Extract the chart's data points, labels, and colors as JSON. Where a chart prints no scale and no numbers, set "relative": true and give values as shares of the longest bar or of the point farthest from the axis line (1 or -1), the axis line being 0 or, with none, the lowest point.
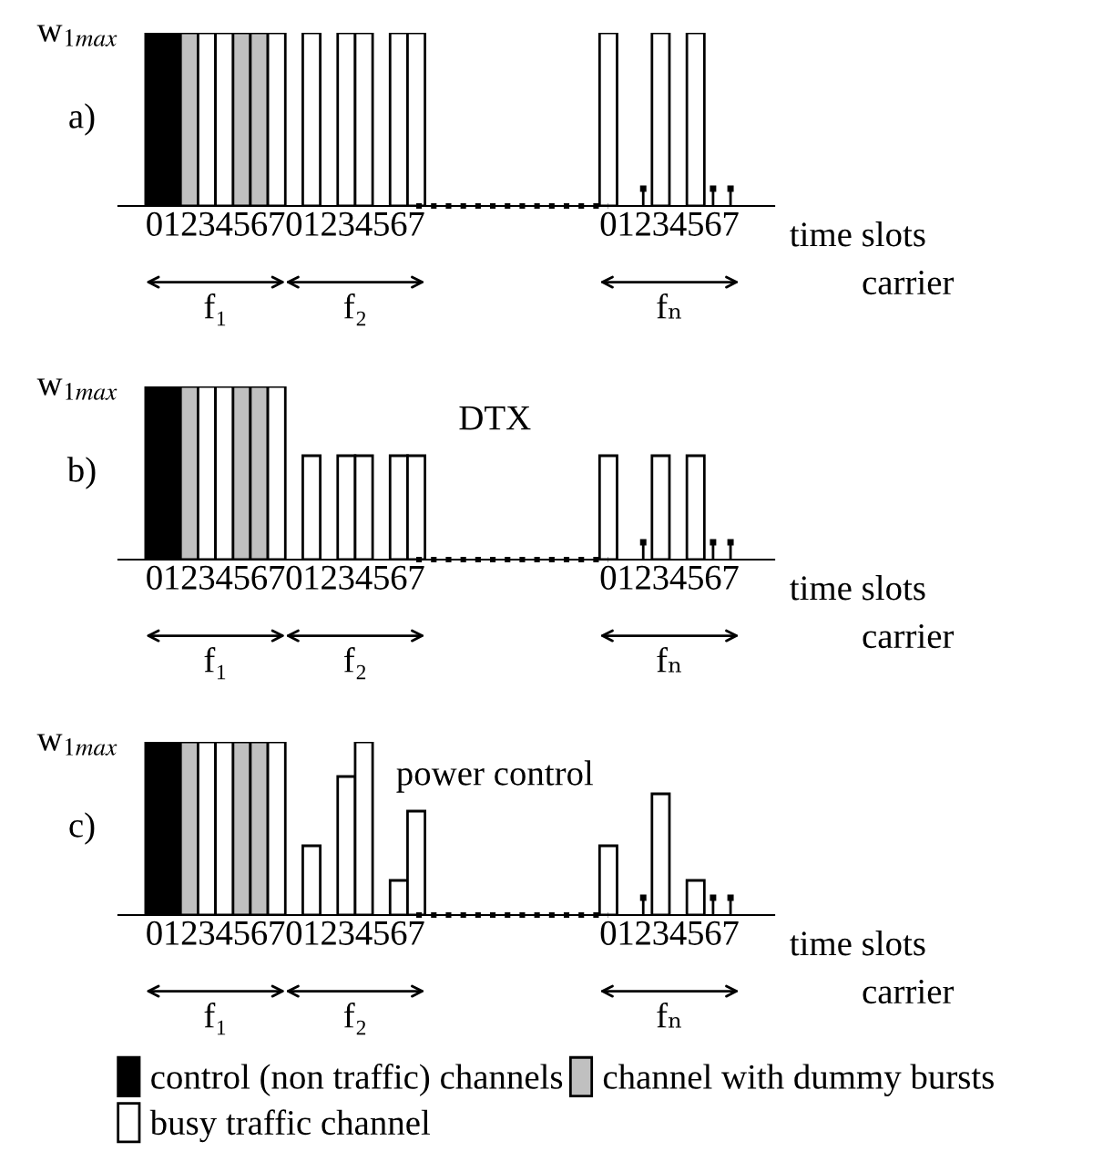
{
  "chart_data": [
    {
      "type": "bar",
      "relative": true,
      "title": "a)",
      "ylabel": "w$_{1max}$",
      "xlabel": "time slots",
      "tick_labels": "x",
      "legend": false,
      "annotations": [
        "f₁",
        "f₂",
        "fₙ",
        "carrier"
      ],
      "categories": [
        "0",
        "1",
        "2",
        "3",
        "4",
        "5",
        "6",
        "7",
        "0",
        "1",
        "2",
        "3",
        "4",
        "5",
        "6",
        "7",
        null,
        null,
        null,
        null,
        null,
        null,
        null,
        null,
        null,
        null,
        "0",
        "1",
        "2",
        "3",
        "4",
        "5",
        "6",
        "7"
      ],
      "series": [
        {
          "color": "#000000",
          "values": [
            1,
            1,
            null,
            null,
            null,
            null,
            null,
            null,
            null,
            null,
            null,
            null,
            null,
            null,
            null,
            null,
            null,
            null,
            null,
            null,
            null,
            null,
            null,
            null,
            null,
            null,
            null,
            null,
            null,
            null,
            null,
            null,
            null,
            null
          ]
        },
        {
          "color": "#c0c0c0",
          "values": [
            null,
            null,
            1,
            null,
            null,
            1,
            1,
            null,
            null,
            null,
            null,
            null,
            null,
            null,
            null,
            null,
            null,
            null,
            null,
            null,
            null,
            null,
            null,
            null,
            null,
            null,
            null,
            null,
            null,
            null,
            null,
            null,
            null,
            null
          ]
        },
        {
          "color": "#ffffff",
          "values": [
            null,
            null,
            null,
            1,
            1,
            null,
            null,
            1,
            null,
            1,
            null,
            1,
            1,
            null,
            1,
            1,
            null,
            null,
            null,
            null,
            null,
            null,
            null,
            null,
            null,
            null,
            1,
            null,
            null,
            1,
            null,
            1,
            null,
            null
          ]
        },
        {
          "type": "lollipop",
          "marker": "square",
          "color": "#000000",
          "values": [
            null,
            null,
            null,
            null,
            null,
            null,
            null,
            null,
            null,
            null,
            null,
            null,
            null,
            null,
            null,
            null,
            null,
            null,
            null,
            null,
            null,
            null,
            null,
            null,
            null,
            null,
            null,
            null,
            0.1,
            null,
            null,
            null,
            0.1,
            0.1
          ]
        },
        {
          "type": "line",
          "line_style": "dotted",
          "marker": "none",
          "color": "#000000",
          "values": [
            null,
            null,
            null,
            null,
            null,
            null,
            null,
            null,
            null,
            null,
            null,
            null,
            null,
            null,
            null,
            0,
            0,
            0,
            0,
            0,
            0,
            0,
            0,
            0,
            0,
            0,
            0,
            null,
            null,
            null,
            null,
            null,
            null,
            null
          ]
        }
      ]
    },
    {
      "type": "bar",
      "relative": true,
      "title": "b)",
      "subtitle": "DTX",
      "ylabel": "w$_{1max}$",
      "xlabel": "time slots",
      "tick_labels": "x",
      "legend": false,
      "annotations": [
        "f₁",
        "f₂",
        "fₙ",
        "carrier"
      ],
      "categories": [
        "0",
        "1",
        "2",
        "3",
        "4",
        "5",
        "6",
        "7",
        "0",
        "1",
        "2",
        "3",
        "4",
        "5",
        "6",
        "7",
        null,
        null,
        null,
        null,
        null,
        null,
        null,
        null,
        null,
        null,
        "0",
        "1",
        "2",
        "3",
        "4",
        "5",
        "6",
        "7"
      ],
      "series": [
        {
          "color": "#000000",
          "values": [
            1,
            1,
            null,
            null,
            null,
            null,
            null,
            null,
            null,
            null,
            null,
            null,
            null,
            null,
            null,
            null,
            null,
            null,
            null,
            null,
            null,
            null,
            null,
            null,
            null,
            null,
            null,
            null,
            null,
            null,
            null,
            null,
            null,
            null
          ]
        },
        {
          "color": "#c0c0c0",
          "values": [
            null,
            null,
            1,
            null,
            null,
            1,
            1,
            null,
            null,
            null,
            null,
            null,
            null,
            null,
            null,
            null,
            null,
            null,
            null,
            null,
            null,
            null,
            null,
            null,
            null,
            null,
            null,
            null,
            null,
            null,
            null,
            null,
            null,
            null
          ]
        },
        {
          "color": "#ffffff",
          "values": [
            null,
            null,
            null,
            1,
            1,
            null,
            null,
            1,
            null,
            0.6,
            null,
            0.6,
            0.6,
            null,
            0.6,
            0.6,
            null,
            null,
            null,
            null,
            null,
            null,
            null,
            null,
            null,
            null,
            0.6,
            null,
            null,
            0.6,
            null,
            0.6,
            null,
            null
          ]
        },
        {
          "type": "lollipop",
          "marker": "square",
          "color": "#000000",
          "values": [
            null,
            null,
            null,
            null,
            null,
            null,
            null,
            null,
            null,
            null,
            null,
            null,
            null,
            null,
            null,
            null,
            null,
            null,
            null,
            null,
            null,
            null,
            null,
            null,
            null,
            null,
            null,
            null,
            0.1,
            null,
            null,
            null,
            0.1,
            0.1
          ]
        },
        {
          "type": "line",
          "line_style": "dotted",
          "marker": "none",
          "color": "#000000",
          "values": [
            null,
            null,
            null,
            null,
            null,
            null,
            null,
            null,
            null,
            null,
            null,
            null,
            null,
            null,
            null,
            0,
            0,
            0,
            0,
            0,
            0,
            0,
            0,
            0,
            0,
            0,
            0,
            null,
            null,
            null,
            null,
            null,
            null,
            null
          ]
        }
      ]
    },
    {
      "type": "bar",
      "relative": true,
      "title": "c)",
      "subtitle": "power control",
      "ylabel": "w$_{1max}$",
      "xlabel": "time slots",
      "tick_labels": "x",
      "legend": "bottom",
      "annotations": [
        "f₁",
        "f₂",
        "fₙ",
        "carrier"
      ],
      "categories": [
        "0",
        "1",
        "2",
        "3",
        "4",
        "5",
        "6",
        "7",
        "0",
        "1",
        "2",
        "3",
        "4",
        "5",
        "6",
        "7",
        null,
        null,
        null,
        null,
        null,
        null,
        null,
        null,
        null,
        null,
        "0",
        "1",
        "2",
        "3",
        "4",
        "5",
        "6",
        "7"
      ],
      "series": [
        {
          "name": "control (non traffic) channels",
          "color": "#000000",
          "values": [
            1,
            1,
            null,
            null,
            null,
            null,
            null,
            null,
            null,
            null,
            null,
            null,
            null,
            null,
            null,
            null,
            null,
            null,
            null,
            null,
            null,
            null,
            null,
            null,
            null,
            null,
            null,
            null,
            null,
            null,
            null,
            null,
            null,
            null
          ]
        },
        {
          "name": "channel with dummy bursts",
          "color": "#c0c0c0",
          "values": [
            null,
            null,
            1,
            null,
            null,
            1,
            1,
            null,
            null,
            null,
            null,
            null,
            null,
            null,
            null,
            null,
            null,
            null,
            null,
            null,
            null,
            null,
            null,
            null,
            null,
            null,
            null,
            null,
            null,
            null,
            null,
            null,
            null,
            null
          ]
        },
        {
          "name": "busy traffic channel",
          "color": "#ffffff",
          "values": [
            null,
            null,
            null,
            1,
            1,
            null,
            null,
            1,
            null,
            0.4,
            null,
            0.8,
            1,
            null,
            0.2,
            0.6,
            null,
            null,
            null,
            null,
            null,
            null,
            null,
            null,
            null,
            null,
            0.4,
            null,
            null,
            0.7,
            null,
            0.2,
            null,
            null
          ]
        },
        {
          "type": "lollipop",
          "marker": "square",
          "color": "#000000",
          "values": [
            null,
            null,
            null,
            null,
            null,
            null,
            null,
            null,
            null,
            null,
            null,
            null,
            null,
            null,
            null,
            null,
            null,
            null,
            null,
            null,
            null,
            null,
            null,
            null,
            null,
            null,
            null,
            null,
            0.1,
            null,
            null,
            null,
            0.1,
            0.1
          ]
        },
        {
          "type": "line",
          "line_style": "dotted",
          "marker": "none",
          "color": "#000000",
          "values": [
            null,
            null,
            null,
            null,
            null,
            null,
            null,
            null,
            null,
            null,
            null,
            null,
            null,
            null,
            null,
            0,
            0,
            0,
            0,
            0,
            0,
            0,
            0,
            0,
            0,
            0,
            0,
            null,
            null,
            null,
            null,
            null,
            null,
            null
          ]
        }
      ]
    }
  ]
}
